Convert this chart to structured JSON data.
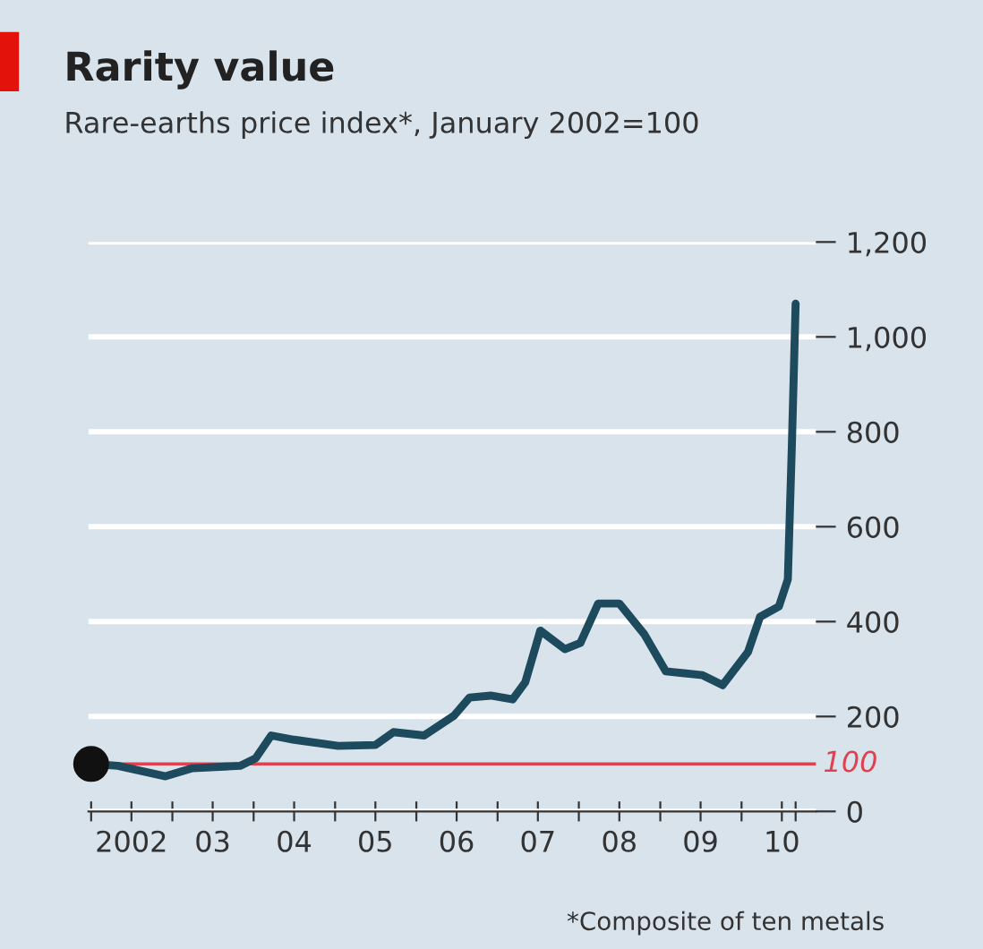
{
  "chart_data": {
    "type": "line",
    "title": "Rarity value",
    "subtitle": "Rare-earths price index*, January 2002=100",
    "annotations": [
      "*Composite of ten metals"
    ],
    "series": [
      {
        "color": "#1d4a5c",
        "x": [
          "2002-01-01",
          "2002-05-01",
          "2002-12-01",
          "2003-04-01",
          "2003-11-01",
          "2004-01-10",
          "2004-03-20",
          "2004-07-01",
          "2005-01-15",
          "2005-07-01",
          "2005-09-20",
          "2006-02-05",
          "2006-06-20",
          "2006-08-28",
          "2006-12-01",
          "2007-03-10",
          "2007-05-05",
          "2007-07-12",
          "2007-10-30",
          "2008-01-08",
          "2008-03-28",
          "2008-07-01",
          "2008-10-20",
          "2009-01-26",
          "2009-07-10",
          "2009-10-08",
          "2010-01-30",
          "2010-03-25",
          "2010-06-18",
          "2010-07-28",
          "2010-08-15",
          "2010-09-01"
        ],
        "values": [
          100,
          96,
          74,
          91,
          96,
          112,
          160,
          151,
          138,
          140,
          167,
          160,
          202,
          240,
          244,
          236,
          272,
          381,
          342,
          355,
          438,
          438,
          374,
          295,
          287,
          266,
          336,
          410,
          432,
          489,
          770,
          1070
        ]
      },
      {
        "type": "scatter",
        "color": "#111111",
        "x": [
          "2002-01-01"
        ],
        "values": [
          100
        ]
      }
    ],
    "xlim": [
      "2001-12-20",
      "2010-12-01"
    ],
    "ylim": [
      0,
      1200
    ],
    "xticks": [
      {
        "value": "2002-01-01",
        "label": null
      },
      {
        "value": "2002-07-01",
        "label": "2002"
      },
      {
        "value": "2003-01-01",
        "label": null
      },
      {
        "value": "2003-07-01",
        "label": "03"
      },
      {
        "value": "2004-01-01",
        "label": null
      },
      {
        "value": "2004-07-01",
        "label": "04"
      },
      {
        "value": "2005-01-01",
        "label": null
      },
      {
        "value": "2005-07-01",
        "label": "05"
      },
      {
        "value": "2006-01-01",
        "label": null
      },
      {
        "value": "2006-07-01",
        "label": "06"
      },
      {
        "value": "2007-01-01",
        "label": null
      },
      {
        "value": "2007-07-01",
        "label": "07"
      },
      {
        "value": "2008-01-01",
        "label": null
      },
      {
        "value": "2008-07-01",
        "label": "08"
      },
      {
        "value": "2009-01-01",
        "label": null
      },
      {
        "value": "2009-07-01",
        "label": "09"
      },
      {
        "value": "2010-01-01",
        "label": null
      },
      {
        "value": "2010-07-01",
        "label": "10"
      },
      {
        "value": "2010-09-01",
        "label": null
      }
    ],
    "yticks": [
      0,
      200,
      400,
      600,
      800,
      {
        "value": 1000,
        "label": "1,000"
      },
      {
        "value": 1200,
        "label": "1,200"
      }
    ],
    "ref_lines": [
      {
        "axis": "y",
        "value": 100,
        "label": "100",
        "color": "#e0404f"
      }
    ],
    "grid": "y",
    "legend": false
  }
}
